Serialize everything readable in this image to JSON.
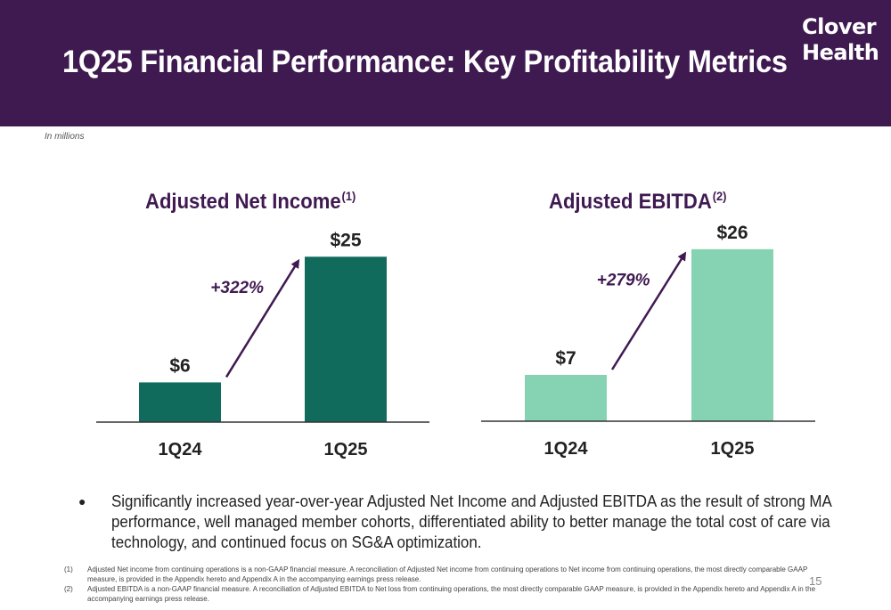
{
  "header": {
    "title": "1Q25 Financial Performance: Key Profitability Metrics",
    "logo_line1": "Clover",
    "logo_line2": "Health"
  },
  "units_note": "In millions",
  "colors": {
    "header_bg": "#3f1a51",
    "dark_green": "#106b5d",
    "light_green": "#86d3b4",
    "accent_purple": "#3f1a51"
  },
  "chart_data": [
    {
      "type": "bar",
      "title": "Adjusted Net Income",
      "title_sup": "(1)",
      "categories": [
        "1Q24",
        "1Q25"
      ],
      "values": [
        6,
        25
      ],
      "value_labels": [
        "$6",
        "$25"
      ],
      "growth_label": "+322%",
      "ylim": [
        0,
        28
      ],
      "color": "#106b5d"
    },
    {
      "type": "bar",
      "title": "Adjusted EBITDA",
      "title_sup": "(2)",
      "categories": [
        "1Q24",
        "1Q25"
      ],
      "values": [
        7,
        26
      ],
      "value_labels": [
        "$7",
        "$26"
      ],
      "growth_label": "+279%",
      "ylim": [
        0,
        28
      ],
      "color": "#86d3b4"
    }
  ],
  "bullet": {
    "symbol": "●",
    "text": "Significantly increased year-over-year Adjusted Net Income and Adjusted EBITDA as the result of strong MA performance, well managed member cohorts, differentiated ability to better manage the total cost of care via technology, and continued focus on SG&A optimization."
  },
  "footnotes": [
    {
      "num": "(1)",
      "text": "Adjusted Net income from continuing operations is a non-GAAP financial measure. A reconciliation of Adjusted Net income from continuing operations to Net income from continuing operations, the most directly comparable GAAP measure, is provided in the Appendix hereto and Appendix A in the accompanying earnings press release."
    },
    {
      "num": "(2)",
      "text": "Adjusted EBITDA is a non-GAAP financial measure. A reconciliation of Adjusted EBITDA to Net loss from continuing operations, the most directly comparable GAAP measure, is provided in the Appendix hereto and Appendix A in the accompanying earnings press release."
    }
  ],
  "page_number": "15"
}
